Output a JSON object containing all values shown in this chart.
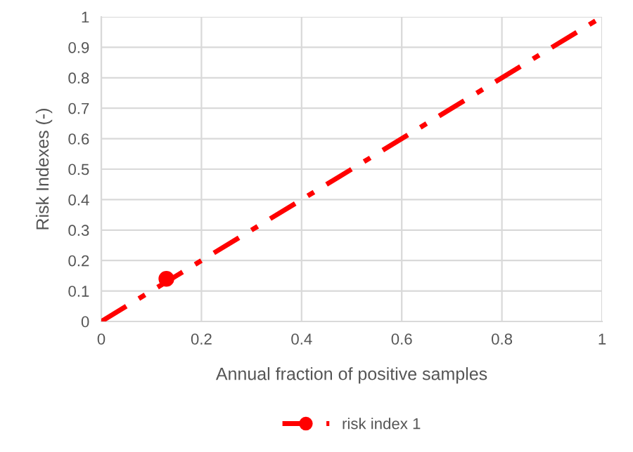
{
  "chart_data": {
    "type": "line",
    "xlabel": "Annual fraction of positive samples",
    "ylabel": "Risk Indexes (-)",
    "series": [
      {
        "name": "risk index 1",
        "color": "#ff0000",
        "x": [
          0,
          1
        ],
        "values": [
          0,
          1
        ],
        "line_style": "dashed",
        "marker": "none"
      },
      {
        "type": "scatter",
        "color": "#ff0000",
        "x": [
          0.13
        ],
        "values": [
          0.14
        ],
        "marker": "circle"
      }
    ],
    "xlim": [
      0,
      1
    ],
    "xticks": [
      0,
      0.2,
      0.4,
      0.6,
      0.8,
      1
    ],
    "ylim": [
      0,
      1
    ],
    "yticks": [
      0,
      0.1,
      0.2,
      0.3,
      0.4,
      0.5,
      0.6,
      0.7,
      0.8,
      0.9,
      1
    ],
    "grid": true,
    "legend": "bottom"
  }
}
